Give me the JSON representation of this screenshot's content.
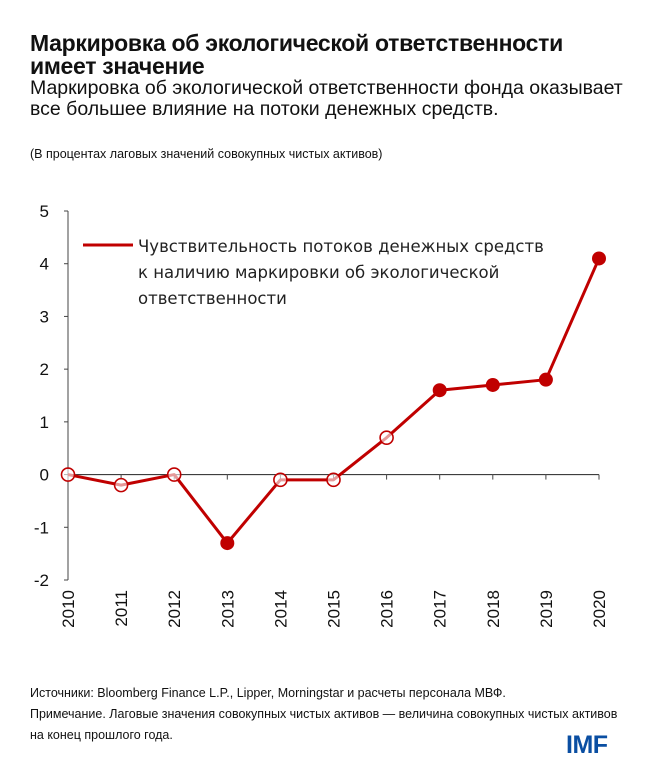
{
  "title": "Маркировка об экологической ответственности имеет значение",
  "subtitle": "Маркировка об экологической ответственности фонда оказывает все большее влияние на потоки денежных средств.",
  "units": "(В процентах лаговых значений совокупных чистых активов)",
  "chart_data": {
    "type": "line",
    "x": [
      "2010",
      "2011",
      "2012",
      "2013",
      "2014",
      "2015",
      "2016",
      "2017",
      "2018",
      "2019",
      "2020"
    ],
    "series": [
      {
        "name": "Чувствительность потоков денежных средств к наличию маркировки об экологической ответственности",
        "values": [
          0,
          -0.2,
          0,
          -1.3,
          -0.1,
          -0.1,
          0.7,
          1.6,
          1.7,
          1.8,
          4.1
        ],
        "filled_markers": [
          false,
          false,
          false,
          true,
          false,
          false,
          false,
          true,
          true,
          true,
          true
        ],
        "color": "#c00000"
      }
    ],
    "legend_lines": [
      "Чувствительность потоков денежных средств",
      "к наличию маркировки об экологической",
      "ответственности"
    ],
    "ylim": [
      -2,
      5
    ],
    "yticks": [
      "5",
      "4",
      "3",
      "2",
      "1",
      "0",
      "-1",
      "-2"
    ],
    "legend_position": "top-left",
    "grid": false
  },
  "footer": {
    "sources": "Источники: Bloomberg Finance L.P., Lipper, Morningstar и расчеты персонала МВФ.",
    "note": "Примечание. Лаговые значения совокупных чистых активов — величина совокупных чистых активов на конец прошлого года."
  },
  "logo": "IMF"
}
